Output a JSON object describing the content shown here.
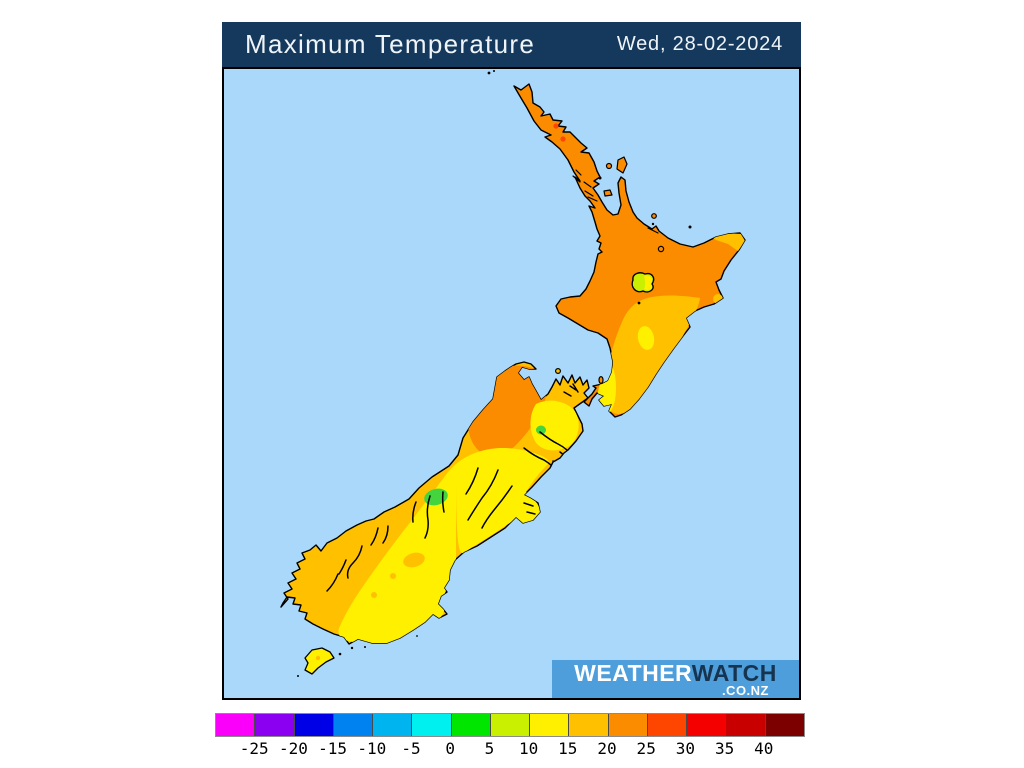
{
  "header": {
    "title": "Maximum Temperature",
    "date": "Wed, 28-02-2024"
  },
  "watermark": {
    "brand_left": "WEATHER",
    "brand_right": "WATCH",
    "domain": ".CO.NZ"
  },
  "legend": {
    "ticks": [
      "-25",
      "-20",
      "-15",
      "-10",
      "-5",
      "0",
      "5",
      "10",
      "15",
      "20",
      "25",
      "30",
      "35",
      "40"
    ],
    "colors": [
      "#fa00fa",
      "#8b00f0",
      "#0000e6",
      "#0082f0",
      "#00b4f0",
      "#00f0f0",
      "#00e600",
      "#c8f000",
      "#fff000",
      "#ffc000",
      "#fb8c00",
      "#ff4600",
      "#f50000",
      "#c80000",
      "#7d0000"
    ]
  },
  "colors": {
    "ocean": "#aad8fa",
    "coast": "#000000",
    "header_bg": "#15395c",
    "banner_bg": "#4d9edb",
    "banner_text_dark": "#16344f",
    "band_5_10_green": "#44d43e",
    "band_10_15": "#c8f000",
    "band_15_20": "#fff000",
    "band_20_25": "#ffc000",
    "band_25_30": "#fb8c00",
    "band_30_35": "#ff4600"
  },
  "map": {
    "region": "New Zealand",
    "type": "temperature-filled-contour",
    "north_island_dominant_band_c": "25-30",
    "south_island_dominant_band_c": "15-25"
  }
}
